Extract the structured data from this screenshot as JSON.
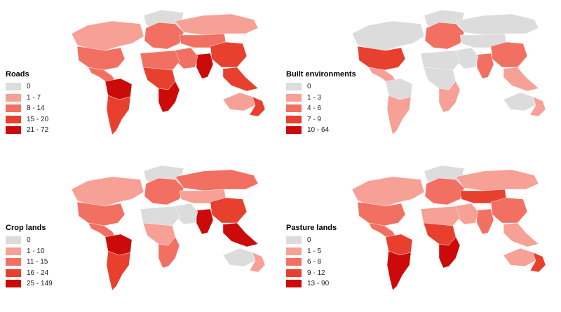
{
  "panels": [
    {
      "id": "roads",
      "legend_title": "Roads",
      "classes": [
        {
          "label": "0",
          "color": "#dcdcdc"
        },
        {
          "label": "1 - 7",
          "color": "#f7a096"
        },
        {
          "label": "8 - 14",
          "color": "#f27062"
        },
        {
          "label": "15 - 20",
          "color": "#e8402f"
        },
        {
          "label": "21 - 72",
          "color": "#cc0a0a"
        }
      ],
      "region_classes": {
        "namerica": 1,
        "usa": 2,
        "camerica": 2,
        "amazon": 4,
        "samerica": 3,
        "greenland": 0,
        "europe": 2,
        "russia": 1,
        "centralasia": 2,
        "china": 3,
        "india": 4,
        "seasia": 3,
        "mideast": 2,
        "sahara": 2,
        "africa": 3,
        "eafrica": 4,
        "australia": 1,
        "eaustralia": 3
      }
    },
    {
      "id": "built",
      "legend_title": "Built environments",
      "classes": [
        {
          "label": "0",
          "color": "#dcdcdc"
        },
        {
          "label": "1 - 3",
          "color": "#f7a096"
        },
        {
          "label": "4 - 6",
          "color": "#f27062"
        },
        {
          "label": "7 - 9",
          "color": "#e8402f"
        },
        {
          "label": "10 - 64",
          "color": "#cc0a0a"
        }
      ],
      "region_classes": {
        "namerica": 0,
        "usa": 3,
        "camerica": 1,
        "amazon": 0,
        "samerica": 1,
        "greenland": 0,
        "europe": 2,
        "russia": 0,
        "centralasia": 0,
        "china": 2,
        "india": 2,
        "seasia": 1,
        "mideast": 0,
        "sahara": 0,
        "africa": 0,
        "eafrica": 1,
        "australia": 0,
        "eaustralia": 1
      }
    },
    {
      "id": "crop",
      "legend_title": "Crop lands",
      "classes": [
        {
          "label": "0",
          "color": "#dcdcdc"
        },
        {
          "label": "1 - 10",
          "color": "#f7a096"
        },
        {
          "label": "11 - 15",
          "color": "#f27062"
        },
        {
          "label": "16 - 24",
          "color": "#e8402f"
        },
        {
          "label": "25 - 149",
          "color": "#cc0a0a"
        }
      ],
      "region_classes": {
        "namerica": 1,
        "usa": 2,
        "camerica": 2,
        "amazon": 4,
        "samerica": 3,
        "greenland": 0,
        "europe": 2,
        "russia": 2,
        "centralasia": 1,
        "china": 3,
        "india": 4,
        "seasia": 4,
        "mideast": 0,
        "sahara": 0,
        "africa": 1,
        "eafrica": 2,
        "australia": 0,
        "eaustralia": 1
      }
    },
    {
      "id": "pasture",
      "legend_title": "Pasture lands",
      "classes": [
        {
          "label": "0",
          "color": "#dcdcdc"
        },
        {
          "label": "1 - 5",
          "color": "#f7a096"
        },
        {
          "label": "6 - 8",
          "color": "#f27062"
        },
        {
          "label": "9 - 12",
          "color": "#e8402f"
        },
        {
          "label": "13 - 90",
          "color": "#cc0a0a"
        }
      ],
      "region_classes": {
        "namerica": 1,
        "usa": 2,
        "camerica": 2,
        "amazon": 3,
        "samerica": 4,
        "greenland": 0,
        "europe": 2,
        "russia": 1,
        "centralasia": 3,
        "china": 2,
        "india": 2,
        "seasia": 1,
        "mideast": 1,
        "sahara": 1,
        "africa": 3,
        "eafrica": 4,
        "australia": 1,
        "eaustralia": 3
      }
    }
  ]
}
